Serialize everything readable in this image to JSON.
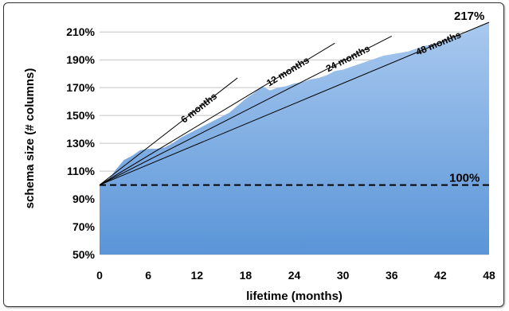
{
  "chart_data": {
    "type": "area",
    "title": "",
    "xlabel": "lifetime (months)",
    "ylabel": "schema size (# columns)",
    "xlim": [
      0,
      48
    ],
    "ylim": [
      50,
      217
    ],
    "x_ticks": [
      0,
      6,
      12,
      18,
      24,
      30,
      36,
      42,
      48
    ],
    "y_ticks": [
      50,
      70,
      90,
      110,
      130,
      150,
      170,
      190,
      210
    ],
    "y_tick_labels": [
      "50%",
      "70%",
      "90%",
      "110%",
      "130%",
      "150%",
      "170%",
      "190%",
      "210%"
    ],
    "grid": "horizontal",
    "legend": "none",
    "area_color": "#5a95d8",
    "series": [
      {
        "x": [
          0,
          1,
          2,
          3,
          4,
          5,
          6,
          7,
          8,
          9,
          10,
          11,
          12,
          13,
          14,
          15,
          16,
          17,
          18,
          19,
          20,
          21,
          22,
          23,
          24,
          25,
          26,
          27,
          28,
          29,
          30,
          31,
          32,
          33,
          34,
          35,
          36,
          37,
          38,
          39,
          40,
          41,
          42,
          43,
          44,
          45,
          46,
          47,
          48
        ],
        "values": [
          100,
          103,
          111,
          118,
          121,
          125,
          126,
          126,
          127,
          130,
          134,
          137,
          140,
          143,
          146,
          149,
          152,
          157,
          162,
          166,
          171,
          168,
          170,
          171,
          173,
          174,
          176,
          177,
          179,
          182,
          183,
          185,
          187,
          189,
          191,
          193,
          194,
          195,
          196,
          198,
          200,
          201,
          203,
          205,
          207,
          209,
          212,
          215,
          217
        ]
      }
    ],
    "reference_lines": [
      {
        "label": "6 months",
        "months": 6,
        "x_end": 17,
        "y_end": 177
      },
      {
        "label": "12 months",
        "months": 12,
        "x_end": 29,
        "y_end": 202
      },
      {
        "label": "24 months",
        "months": 24,
        "x_end": 36,
        "y_end": 207
      },
      {
        "label": "48 months",
        "months": 48,
        "x_end": 48,
        "y_end": 217
      }
    ],
    "baseline": {
      "value": 100,
      "label": "100%"
    },
    "end_annotation": {
      "x": 48,
      "value": 217,
      "label": "217%"
    }
  }
}
